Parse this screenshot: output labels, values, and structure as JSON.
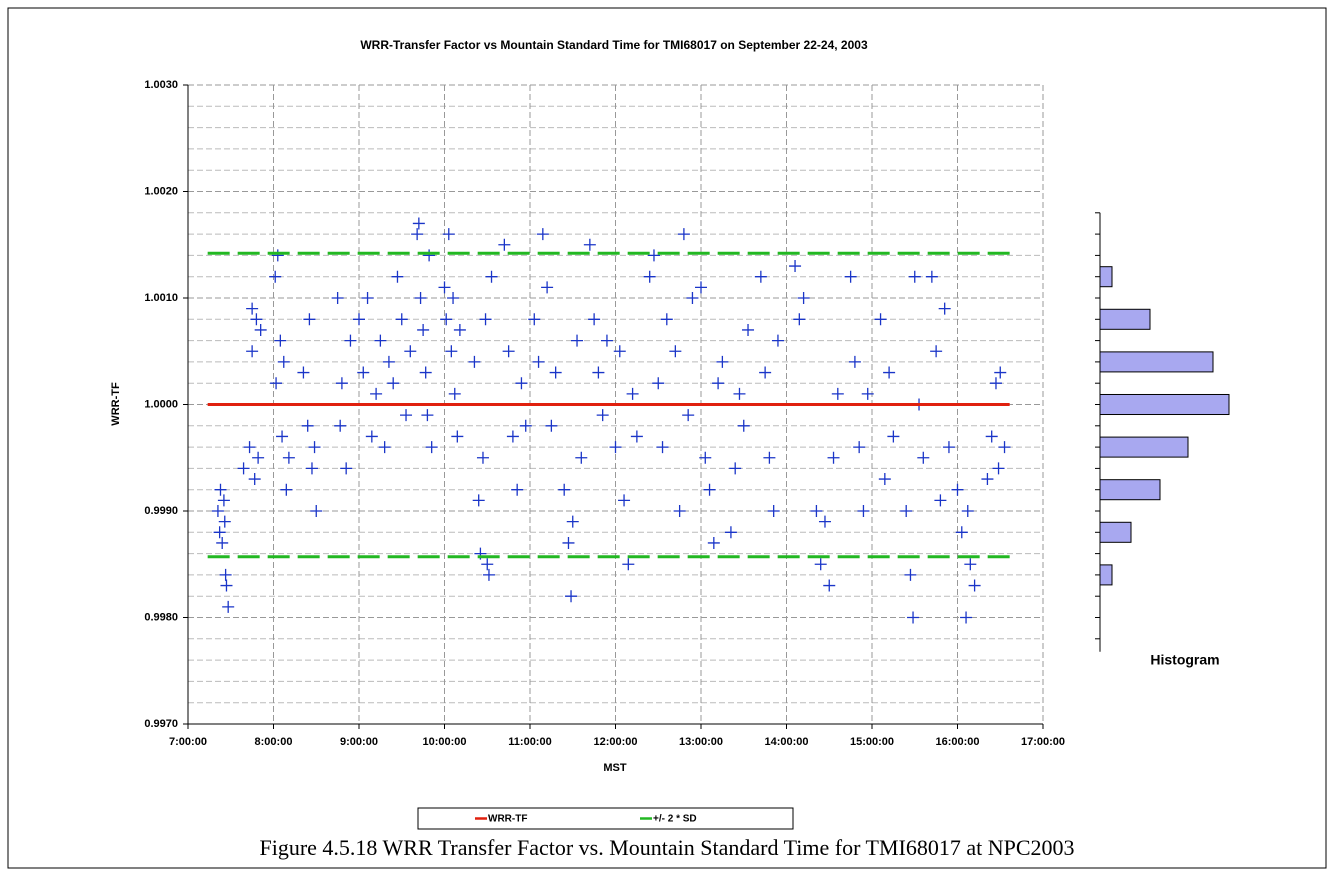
{
  "caption": "Figure 4.5.18  WRR Transfer Factor vs. Mountain Standard Time for TMI68017 at NPC2003",
  "chart_data": [
    {
      "type": "scatter",
      "title": "WRR-Transfer Factor vs Mountain Standard Time for TMI68017 on September 22-24, 2003",
      "xlabel": "MST",
      "ylabel": "WRR-TF",
      "xlim": [
        7,
        17
      ],
      "xticks": [
        {
          "value": 7,
          "label": "7:00:00"
        },
        {
          "value": 8,
          "label": "8:00:00"
        },
        {
          "value": 9,
          "label": "9:00:00"
        },
        {
          "value": 10,
          "label": "10:00:00"
        },
        {
          "value": 11,
          "label": "11:00:00"
        },
        {
          "value": 12,
          "label": "12:00:00"
        },
        {
          "value": 13,
          "label": "13:00:00"
        },
        {
          "value": 14,
          "label": "14:00:00"
        },
        {
          "value": 15,
          "label": "15:00:00"
        },
        {
          "value": 16,
          "label": "16:00:00"
        },
        {
          "value": 17,
          "label": "17:00:00"
        }
      ],
      "ylim": [
        0.997,
        1.003
      ],
      "yticks": [
        {
          "value": 0.997,
          "label": "0.9970"
        },
        {
          "value": 0.998,
          "label": "0.9980"
        },
        {
          "value": 0.999,
          "label": "0.9990"
        },
        {
          "value": 1.0,
          "label": "1.0000"
        },
        {
          "value": 1.001,
          "label": "1.0010"
        },
        {
          "value": 1.002,
          "label": "1.0020"
        },
        {
          "value": 1.003,
          "label": "1.0030"
        }
      ],
      "y_minor_ticks": [
        0.9972,
        0.9974,
        0.9976,
        0.9978,
        0.9982,
        0.9984,
        0.9986,
        0.9988,
        0.9992,
        0.9994,
        0.9996,
        0.9998,
        1.0002,
        1.0004,
        1.0006,
        1.0008,
        1.0012,
        1.0014,
        1.0016,
        1.0018,
        1.0022,
        1.0024,
        1.0026,
        1.0028
      ],
      "grid": true,
      "x": [
        7.35,
        7.37,
        7.38,
        7.4,
        7.42,
        7.44,
        7.45,
        7.47,
        7.43,
        7.65,
        7.72,
        7.75,
        7.78,
        7.8,
        7.82,
        7.75,
        7.85,
        8.02,
        8.05,
        8.03,
        8.08,
        8.1,
        8.15,
        8.18,
        8.12,
        8.35,
        8.4,
        8.45,
        8.5,
        8.42,
        8.48,
        8.75,
        8.8,
        8.85,
        8.9,
        8.78,
        9.0,
        9.05,
        9.1,
        9.15,
        9.2,
        9.25,
        9.3,
        9.35,
        9.4,
        9.45,
        9.5,
        9.55,
        9.6,
        9.68,
        9.7,
        9.72,
        9.75,
        9.78,
        9.8,
        9.85,
        9.82,
        10.0,
        10.05,
        10.02,
        10.08,
        10.1,
        10.12,
        10.15,
        10.18,
        10.35,
        10.4,
        10.42,
        10.45,
        10.48,
        10.5,
        10.52,
        10.55,
        10.7,
        10.75,
        10.8,
        10.85,
        10.9,
        10.95,
        11.05,
        11.1,
        11.15,
        11.2,
        11.25,
        11.3,
        11.4,
        11.45,
        11.48,
        11.5,
        11.55,
        11.6,
        11.7,
        11.75,
        11.8,
        11.85,
        11.9,
        12.0,
        12.05,
        12.1,
        12.15,
        12.2,
        12.25,
        12.4,
        12.45,
        12.5,
        12.55,
        12.6,
        12.7,
        12.75,
        12.8,
        12.85,
        12.9,
        13.0,
        13.05,
        13.1,
        13.15,
        13.2,
        13.25,
        13.35,
        13.4,
        13.45,
        13.5,
        13.55,
        13.7,
        13.75,
        13.8,
        13.85,
        13.9,
        14.1,
        14.15,
        14.2,
        14.35,
        14.4,
        14.45,
        14.5,
        14.55,
        14.6,
        14.75,
        14.8,
        14.85,
        14.9,
        14.95,
        15.1,
        15.15,
        15.2,
        15.25,
        15.4,
        15.45,
        15.48,
        15.5,
        15.55,
        15.6,
        15.7,
        15.75,
        15.8,
        15.85,
        15.9,
        16.0,
        16.05,
        16.1,
        16.15,
        16.2,
        16.12,
        16.35,
        16.4,
        16.45,
        16.5,
        16.55,
        16.48
      ],
      "series": [
        {
          "color": "#1a35c8",
          "values": [
            0.999,
            0.9988,
            0.9992,
            0.9987,
            0.9991,
            0.9984,
            0.9983,
            0.9981,
            0.9989,
            0.9994,
            0.9996,
            1.0005,
            0.9993,
            1.0008,
            0.9995,
            1.0009,
            1.0007,
            1.0012,
            1.0014,
            1.0002,
            1.0006,
            0.9997,
            0.9992,
            0.9995,
            1.0004,
            1.0003,
            0.9998,
            0.9994,
            0.999,
            1.0008,
            0.9996,
            1.001,
            1.0002,
            0.9994,
            1.0006,
            0.9998,
            1.0008,
            1.0003,
            1.001,
            0.9997,
            1.0001,
            1.0006,
            0.9996,
            1.0004,
            1.0002,
            1.0012,
            1.0008,
            0.9999,
            1.0005,
            1.0016,
            1.0017,
            1.001,
            1.0007,
            1.0003,
            0.9999,
            0.9996,
            1.0014,
            1.0011,
            1.0016,
            1.0008,
            1.0005,
            1.001,
            1.0001,
            0.9997,
            1.0007,
            1.0004,
            0.9991,
            0.9986,
            0.9995,
            1.0008,
            0.9985,
            0.9984,
            1.0012,
            1.0015,
            1.0005,
            0.9997,
            0.9992,
            1.0002,
            0.9998,
            1.0008,
            1.0004,
            1.0016,
            1.0011,
            0.9998,
            1.0003,
            0.9992,
            0.9987,
            0.9982,
            0.9989,
            1.0006,
            0.9995,
            1.0015,
            1.0008,
            1.0003,
            0.9999,
            1.0006,
            0.9996,
            1.0005,
            0.9991,
            0.9985,
            1.0001,
            0.9997,
            1.0012,
            1.0014,
            1.0002,
            0.9996,
            1.0008,
            1.0005,
            0.999,
            1.0016,
            0.9999,
            1.001,
            1.0011,
            0.9995,
            0.9992,
            0.9987,
            1.0002,
            1.0004,
            0.9988,
            0.9994,
            1.0001,
            0.9998,
            1.0007,
            1.0012,
            1.0003,
            0.9995,
            0.999,
            1.0006,
            1.0013,
            1.0008,
            1.001,
            0.999,
            0.9985,
            0.9989,
            0.9983,
            0.9995,
            1.0001,
            1.0012,
            1.0004,
            0.9996,
            0.999,
            1.0001,
            1.0008,
            0.9993,
            1.0003,
            0.9997,
            0.999,
            0.9984,
            0.998,
            1.0012,
            1.0,
            0.9995,
            1.0012,
            1.0005,
            0.9991,
            1.0009,
            0.9996,
            0.9992,
            0.9988,
            0.998,
            0.9985,
            0.9983,
            0.999,
            0.9993,
            0.9997,
            1.0002,
            1.0003,
            0.9996,
            0.9994
          ]
        }
      ],
      "lines": [
        {
          "name": "WRR-TF",
          "color": "#e0200e",
          "y": [
            1.0
          ],
          "x": [
            7.23,
            16.61
          ],
          "dashed": false
        },
        {
          "name": "+/- 2 * SD",
          "color": "#22b822",
          "y": [
            1.00142,
            0.99857
          ],
          "x": [
            7.23,
            16.61
          ],
          "dashed": true
        }
      ]
    },
    {
      "type": "histogram",
      "title": "Histogram",
      "orientation": "horizontal",
      "bins": [
        0.9982,
        0.9986,
        0.999,
        0.9994,
        0.9998,
        1.0002,
        1.0006,
        1.001,
        1.0014
      ],
      "values": [
        12,
        31,
        60,
        88,
        129,
        113,
        50,
        12
      ],
      "color": "#a8a8f0",
      "ylim": [
        0.997,
        1.003
      ],
      "yticks": [
        0.9978,
        0.998,
        0.9982,
        0.9984,
        0.9986,
        0.9988,
        0.999,
        0.9992,
        0.9994,
        0.9996,
        0.9998,
        1.0,
        1.0002,
        1.0004,
        1.0006,
        1.0008,
        1.001,
        1.0012,
        1.0014,
        1.0016,
        1.0018
      ]
    }
  ]
}
